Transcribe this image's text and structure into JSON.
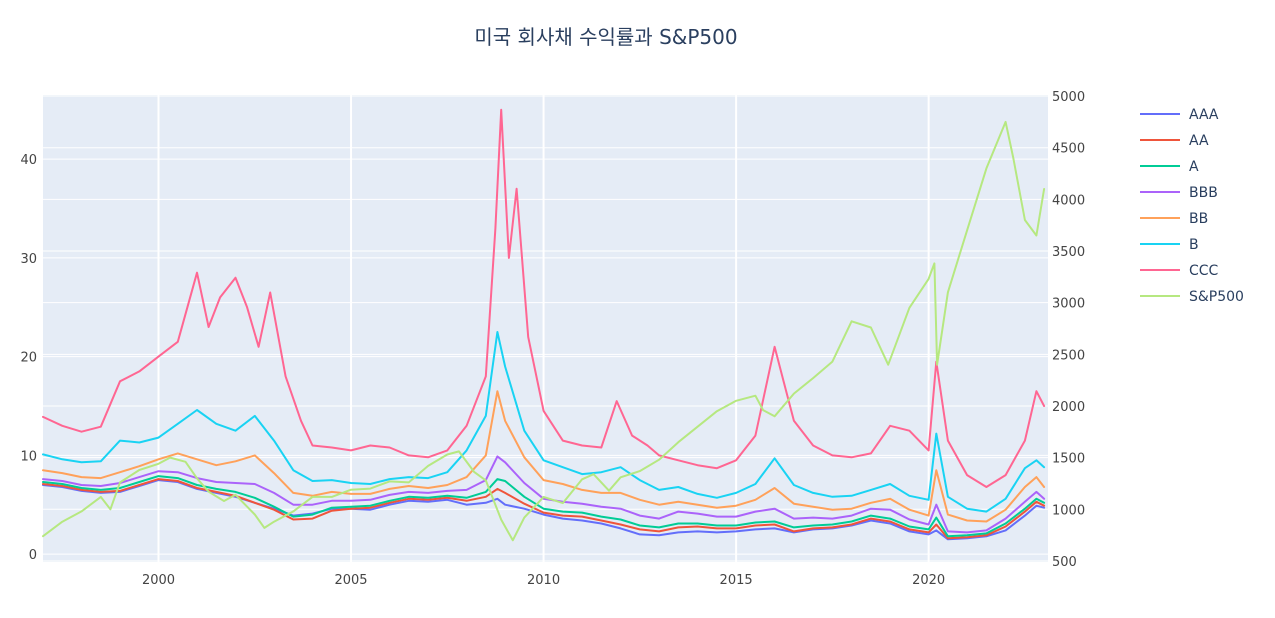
{
  "chart_data": {
    "type": "line",
    "title": "미국 회사채 수익률과 S&P500",
    "xlabel": "",
    "ylabel": "",
    "y2label": "",
    "xlim": [
      1997.0,
      2023.1
    ],
    "ylim": [
      -0.8,
      46.5
    ],
    "y2lim": [
      490,
      5010
    ],
    "x_ticks": [
      2000,
      2005,
      2010,
      2015,
      2020
    ],
    "y_ticks": [
      0,
      10,
      20,
      30,
      40
    ],
    "y2_ticks": [
      500,
      1000,
      1500,
      2000,
      2500,
      3000,
      3500,
      4000,
      4500,
      5000
    ],
    "grid": true,
    "legend_position": "right",
    "series": [
      {
        "name": "AAA",
        "color": "#636efa",
        "axis": "y",
        "x": [
          1997.0,
          1997.5,
          1998.0,
          1998.5,
          1999.0,
          1999.5,
          2000.0,
          2000.5,
          2001.0,
          2001.5,
          2002.0,
          2002.5,
          2003.0,
          2003.5,
          2004.0,
          2004.5,
          2005.0,
          2005.5,
          2006.0,
          2006.5,
          2007.0,
          2007.5,
          2008.0,
          2008.5,
          2008.8,
          2009.0,
          2009.5,
          2010.0,
          2010.5,
          2011.0,
          2011.5,
          2012.0,
          2012.5,
          2013.0,
          2013.5,
          2014.0,
          2014.5,
          2015.0,
          2015.5,
          2016.0,
          2016.5,
          2017.0,
          2017.5,
          2018.0,
          2018.5,
          2019.0,
          2019.5,
          2020.0,
          2020.2,
          2020.5,
          2021.0,
          2021.5,
          2022.0,
          2022.5,
          2022.8,
          2023.0
        ],
        "y": [
          7.0,
          6.8,
          6.4,
          6.2,
          6.3,
          6.9,
          7.5,
          7.3,
          6.6,
          6.2,
          5.8,
          5.2,
          4.6,
          3.9,
          4.1,
          4.6,
          4.6,
          4.5,
          5.0,
          5.4,
          5.3,
          5.5,
          5.0,
          5.2,
          5.6,
          5.0,
          4.6,
          4.0,
          3.6,
          3.4,
          3.1,
          2.6,
          2.0,
          1.9,
          2.2,
          2.3,
          2.2,
          2.3,
          2.5,
          2.6,
          2.2,
          2.5,
          2.6,
          2.9,
          3.4,
          3.1,
          2.3,
          2.0,
          2.4,
          1.5,
          1.6,
          1.8,
          2.4,
          3.9,
          4.9,
          4.7
        ]
      },
      {
        "name": "AA",
        "color": "#ef553b",
        "axis": "y",
        "x": [
          1997.0,
          1997.5,
          1998.0,
          1998.5,
          1999.0,
          1999.5,
          2000.0,
          2000.5,
          2001.0,
          2001.5,
          2002.0,
          2002.5,
          2003.0,
          2003.5,
          2004.0,
          2004.5,
          2005.0,
          2005.5,
          2006.0,
          2006.5,
          2007.0,
          2007.5,
          2008.0,
          2008.5,
          2008.8,
          2009.0,
          2009.5,
          2010.0,
          2010.5,
          2011.0,
          2011.5,
          2012.0,
          2012.5,
          2013.0,
          2013.5,
          2014.0,
          2014.5,
          2015.0,
          2015.5,
          2016.0,
          2016.5,
          2017.0,
          2017.5,
          2018.0,
          2018.5,
          2019.0,
          2019.5,
          2020.0,
          2020.2,
          2020.5,
          2021.0,
          2021.5,
          2022.0,
          2022.5,
          2022.8,
          2023.0
        ],
        "y": [
          7.1,
          6.9,
          6.5,
          6.3,
          6.4,
          7.0,
          7.6,
          7.4,
          6.7,
          6.3,
          5.9,
          5.2,
          4.5,
          3.5,
          3.6,
          4.4,
          4.6,
          4.7,
          5.2,
          5.6,
          5.5,
          5.7,
          5.4,
          5.8,
          6.6,
          6.2,
          5.1,
          4.2,
          3.9,
          3.8,
          3.4,
          3.0,
          2.5,
          2.3,
          2.7,
          2.8,
          2.6,
          2.6,
          2.9,
          3.0,
          2.3,
          2.6,
          2.7,
          3.0,
          3.6,
          3.3,
          2.5,
          2.2,
          3.0,
          1.6,
          1.7,
          1.9,
          2.8,
          4.3,
          5.3,
          4.9
        ]
      },
      {
        "name": "A",
        "color": "#00cc96",
        "axis": "y",
        "x": [
          1997.0,
          1997.5,
          1998.0,
          1998.5,
          1999.0,
          1999.5,
          2000.0,
          2000.5,
          2001.0,
          2001.5,
          2002.0,
          2002.5,
          2003.0,
          2003.5,
          2004.0,
          2004.5,
          2005.0,
          2005.5,
          2006.0,
          2006.5,
          2007.0,
          2007.5,
          2008.0,
          2008.5,
          2008.8,
          2009.0,
          2009.5,
          2010.0,
          2010.5,
          2011.0,
          2011.5,
          2012.0,
          2012.5,
          2013.0,
          2013.5,
          2014.0,
          2014.5,
          2015.0,
          2015.5,
          2016.0,
          2016.5,
          2017.0,
          2017.5,
          2018.0,
          2018.5,
          2019.0,
          2019.5,
          2020.0,
          2020.2,
          2020.5,
          2021.0,
          2021.5,
          2022.0,
          2022.5,
          2022.8,
          2023.0
        ],
        "y": [
          7.3,
          7.1,
          6.7,
          6.5,
          6.7,
          7.3,
          7.9,
          7.7,
          7.0,
          6.6,
          6.3,
          5.7,
          4.8,
          3.8,
          4.0,
          4.7,
          4.8,
          4.9,
          5.4,
          5.8,
          5.7,
          5.9,
          5.7,
          6.3,
          7.6,
          7.4,
          5.8,
          4.6,
          4.3,
          4.2,
          3.8,
          3.5,
          2.9,
          2.7,
          3.1,
          3.1,
          2.9,
          2.9,
          3.2,
          3.3,
          2.7,
          2.9,
          3.0,
          3.3,
          3.9,
          3.6,
          2.8,
          2.5,
          3.7,
          1.8,
          1.9,
          2.1,
          3.1,
          4.6,
          5.6,
          5.2
        ]
      },
      {
        "name": "BBB",
        "color": "#ab63fa",
        "axis": "y",
        "x": [
          1997.0,
          1997.5,
          1998.0,
          1998.5,
          1999.0,
          1999.5,
          2000.0,
          2000.5,
          2001.0,
          2001.5,
          2002.0,
          2002.5,
          2003.0,
          2003.5,
          2004.0,
          2004.5,
          2005.0,
          2005.5,
          2006.0,
          2006.5,
          2007.0,
          2007.5,
          2008.0,
          2008.5,
          2008.8,
          2009.0,
          2009.5,
          2010.0,
          2010.5,
          2011.0,
          2011.5,
          2012.0,
          2012.5,
          2013.0,
          2013.5,
          2014.0,
          2014.5,
          2015.0,
          2015.5,
          2016.0,
          2016.5,
          2017.0,
          2017.5,
          2018.0,
          2018.5,
          2019.0,
          2019.5,
          2020.0,
          2020.2,
          2020.5,
          2021.0,
          2021.5,
          2022.0,
          2022.5,
          2022.8,
          2023.0
        ],
        "y": [
          7.6,
          7.4,
          7.0,
          6.9,
          7.2,
          7.8,
          8.4,
          8.3,
          7.7,
          7.3,
          7.2,
          7.1,
          6.2,
          5.0,
          5.0,
          5.4,
          5.4,
          5.5,
          6.0,
          6.3,
          6.2,
          6.4,
          6.5,
          7.5,
          9.9,
          9.3,
          7.2,
          5.6,
          5.3,
          5.1,
          4.8,
          4.6,
          3.9,
          3.6,
          4.3,
          4.1,
          3.8,
          3.8,
          4.3,
          4.6,
          3.6,
          3.7,
          3.6,
          3.9,
          4.6,
          4.5,
          3.5,
          3.0,
          5.0,
          2.3,
          2.2,
          2.4,
          3.6,
          5.3,
          6.3,
          5.6
        ]
      },
      {
        "name": "BB",
        "color": "#ffa15a",
        "axis": "y",
        "x": [
          1997.0,
          1997.5,
          1998.0,
          1998.5,
          1999.0,
          1999.5,
          2000.0,
          2000.5,
          2001.0,
          2001.5,
          2002.0,
          2002.5,
          2003.0,
          2003.5,
          2004.0,
          2004.5,
          2005.0,
          2005.5,
          2006.0,
          2006.5,
          2007.0,
          2007.5,
          2008.0,
          2008.5,
          2008.8,
          2009.0,
          2009.5,
          2010.0,
          2010.5,
          2011.0,
          2011.5,
          2012.0,
          2012.5,
          2013.0,
          2013.5,
          2014.0,
          2014.5,
          2015.0,
          2015.5,
          2016.0,
          2016.5,
          2017.0,
          2017.5,
          2018.0,
          2018.5,
          2019.0,
          2019.5,
          2020.0,
          2020.2,
          2020.5,
          2021.0,
          2021.5,
          2022.0,
          2022.5,
          2022.8,
          2023.0
        ],
        "y": [
          8.5,
          8.2,
          7.8,
          7.7,
          8.3,
          8.9,
          9.6,
          10.2,
          9.6,
          9.0,
          9.4,
          10.0,
          8.2,
          6.2,
          5.9,
          6.3,
          6.1,
          6.1,
          6.6,
          6.9,
          6.7,
          7.0,
          7.8,
          10.0,
          16.5,
          13.5,
          9.8,
          7.5,
          7.1,
          6.5,
          6.2,
          6.2,
          5.5,
          5.0,
          5.3,
          5.0,
          4.7,
          4.9,
          5.5,
          6.7,
          5.1,
          4.8,
          4.5,
          4.6,
          5.2,
          5.6,
          4.5,
          3.9,
          8.5,
          4.0,
          3.4,
          3.3,
          4.5,
          6.8,
          7.8,
          6.8
        ]
      },
      {
        "name": "B",
        "color": "#19d3f3",
        "axis": "y",
        "x": [
          1997.0,
          1997.5,
          1998.0,
          1998.5,
          1999.0,
          1999.5,
          2000.0,
          2000.5,
          2001.0,
          2001.5,
          2002.0,
          2002.5,
          2003.0,
          2003.5,
          2004.0,
          2004.5,
          2005.0,
          2005.5,
          2006.0,
          2006.5,
          2007.0,
          2007.5,
          2008.0,
          2008.5,
          2008.8,
          2009.0,
          2009.5,
          2010.0,
          2010.5,
          2011.0,
          2011.5,
          2012.0,
          2012.5,
          2013.0,
          2013.5,
          2014.0,
          2014.5,
          2015.0,
          2015.5,
          2016.0,
          2016.5,
          2017.0,
          2017.5,
          2018.0,
          2018.5,
          2019.0,
          2019.5,
          2020.0,
          2020.2,
          2020.5,
          2021.0,
          2021.5,
          2022.0,
          2022.5,
          2022.8,
          2023.0
        ],
        "y": [
          10.1,
          9.6,
          9.3,
          9.4,
          11.5,
          11.3,
          11.8,
          13.2,
          14.6,
          13.2,
          12.5,
          14.0,
          11.5,
          8.5,
          7.4,
          7.5,
          7.2,
          7.1,
          7.6,
          7.8,
          7.7,
          8.3,
          10.5,
          14.0,
          22.5,
          19.0,
          12.5,
          9.5,
          8.8,
          8.1,
          8.3,
          8.8,
          7.5,
          6.5,
          6.8,
          6.1,
          5.7,
          6.2,
          7.1,
          9.7,
          7.0,
          6.2,
          5.8,
          5.9,
          6.5,
          7.1,
          5.9,
          5.5,
          12.2,
          5.8,
          4.6,
          4.3,
          5.6,
          8.7,
          9.5,
          8.8
        ]
      },
      {
        "name": "CCC",
        "color": "#ff6692",
        "axis": "y",
        "x": [
          1997.0,
          1997.5,
          1998.0,
          1998.5,
          1999.0,
          1999.5,
          2000.0,
          2000.5,
          2001.0,
          2001.3,
          2001.6,
          2002.0,
          2002.3,
          2002.6,
          2002.9,
          2003.3,
          2003.7,
          2004.0,
          2004.5,
          2005.0,
          2005.5,
          2006.0,
          2006.5,
          2007.0,
          2007.5,
          2008.0,
          2008.5,
          2008.75,
          2008.9,
          2009.1,
          2009.3,
          2009.6,
          2010.0,
          2010.5,
          2011.0,
          2011.5,
          2011.9,
          2012.3,
          2012.7,
          2013.0,
          2013.5,
          2014.0,
          2014.5,
          2015.0,
          2015.5,
          2016.0,
          2016.2,
          2016.5,
          2017.0,
          2017.5,
          2018.0,
          2018.5,
          2019.0,
          2019.5,
          2020.0,
          2020.2,
          2020.5,
          2021.0,
          2021.5,
          2022.0,
          2022.5,
          2022.8,
          2023.0
        ],
        "y": [
          13.9,
          13.0,
          12.4,
          12.9,
          17.5,
          18.5,
          20.0,
          21.5,
          28.5,
          23.0,
          26.0,
          28.0,
          25.0,
          21.0,
          26.5,
          18.0,
          13.5,
          11.0,
          10.8,
          10.5,
          11.0,
          10.8,
          10.0,
          9.8,
          10.5,
          13.0,
          18.0,
          33.0,
          45.0,
          30.0,
          37.0,
          22.0,
          14.5,
          11.5,
          11.0,
          10.8,
          15.5,
          12.0,
          11.0,
          10.0,
          9.5,
          9.0,
          8.7,
          9.5,
          12.0,
          21.0,
          18.0,
          13.5,
          11.0,
          10.0,
          9.8,
          10.2,
          13.0,
          12.5,
          10.5,
          19.5,
          11.5,
          8.0,
          6.8,
          8.0,
          11.5,
          16.5,
          15.0
        ]
      },
      {
        "name": "S&P500",
        "color": "#b6e880",
        "axis": "y2",
        "x": [
          1997.0,
          1997.5,
          1998.0,
          1998.5,
          1998.75,
          1999.0,
          1999.5,
          2000.0,
          2000.3,
          2000.7,
          2001.0,
          2001.3,
          2001.7,
          2002.0,
          2002.5,
          2002.75,
          2003.0,
          2003.5,
          2004.0,
          2004.5,
          2005.0,
          2005.5,
          2006.0,
          2006.5,
          2007.0,
          2007.5,
          2007.8,
          2008.2,
          2008.5,
          2008.9,
          2009.2,
          2009.5,
          2010.0,
          2010.5,
          2011.0,
          2011.3,
          2011.7,
          2012.0,
          2012.5,
          2013.0,
          2013.5,
          2014.0,
          2014.5,
          2015.0,
          2015.5,
          2015.7,
          2016.0,
          2016.5,
          2017.0,
          2017.5,
          2018.0,
          2018.5,
          2018.95,
          2019.5,
          2020.0,
          2020.15,
          2020.22,
          2020.5,
          2021.0,
          2021.5,
          2022.0,
          2022.2,
          2022.5,
          2022.8,
          2023.0
        ],
        "y": [
          740,
          880,
          980,
          1120,
          1000,
          1260,
          1380,
          1440,
          1500,
          1460,
          1300,
          1170,
          1080,
          1140,
          950,
          820,
          880,
          980,
          1120,
          1120,
          1190,
          1200,
          1270,
          1260,
          1420,
          1530,
          1560,
          1360,
          1280,
          900,
          700,
          920,
          1120,
          1060,
          1290,
          1340,
          1180,
          1310,
          1370,
          1480,
          1650,
          1800,
          1950,
          2050,
          2100,
          1960,
          1900,
          2120,
          2270,
          2430,
          2820,
          2760,
          2400,
          2950,
          3230,
          3380,
          2400,
          3100,
          3700,
          4300,
          4750,
          4400,
          3800,
          3650,
          4100
        ]
      }
    ]
  }
}
